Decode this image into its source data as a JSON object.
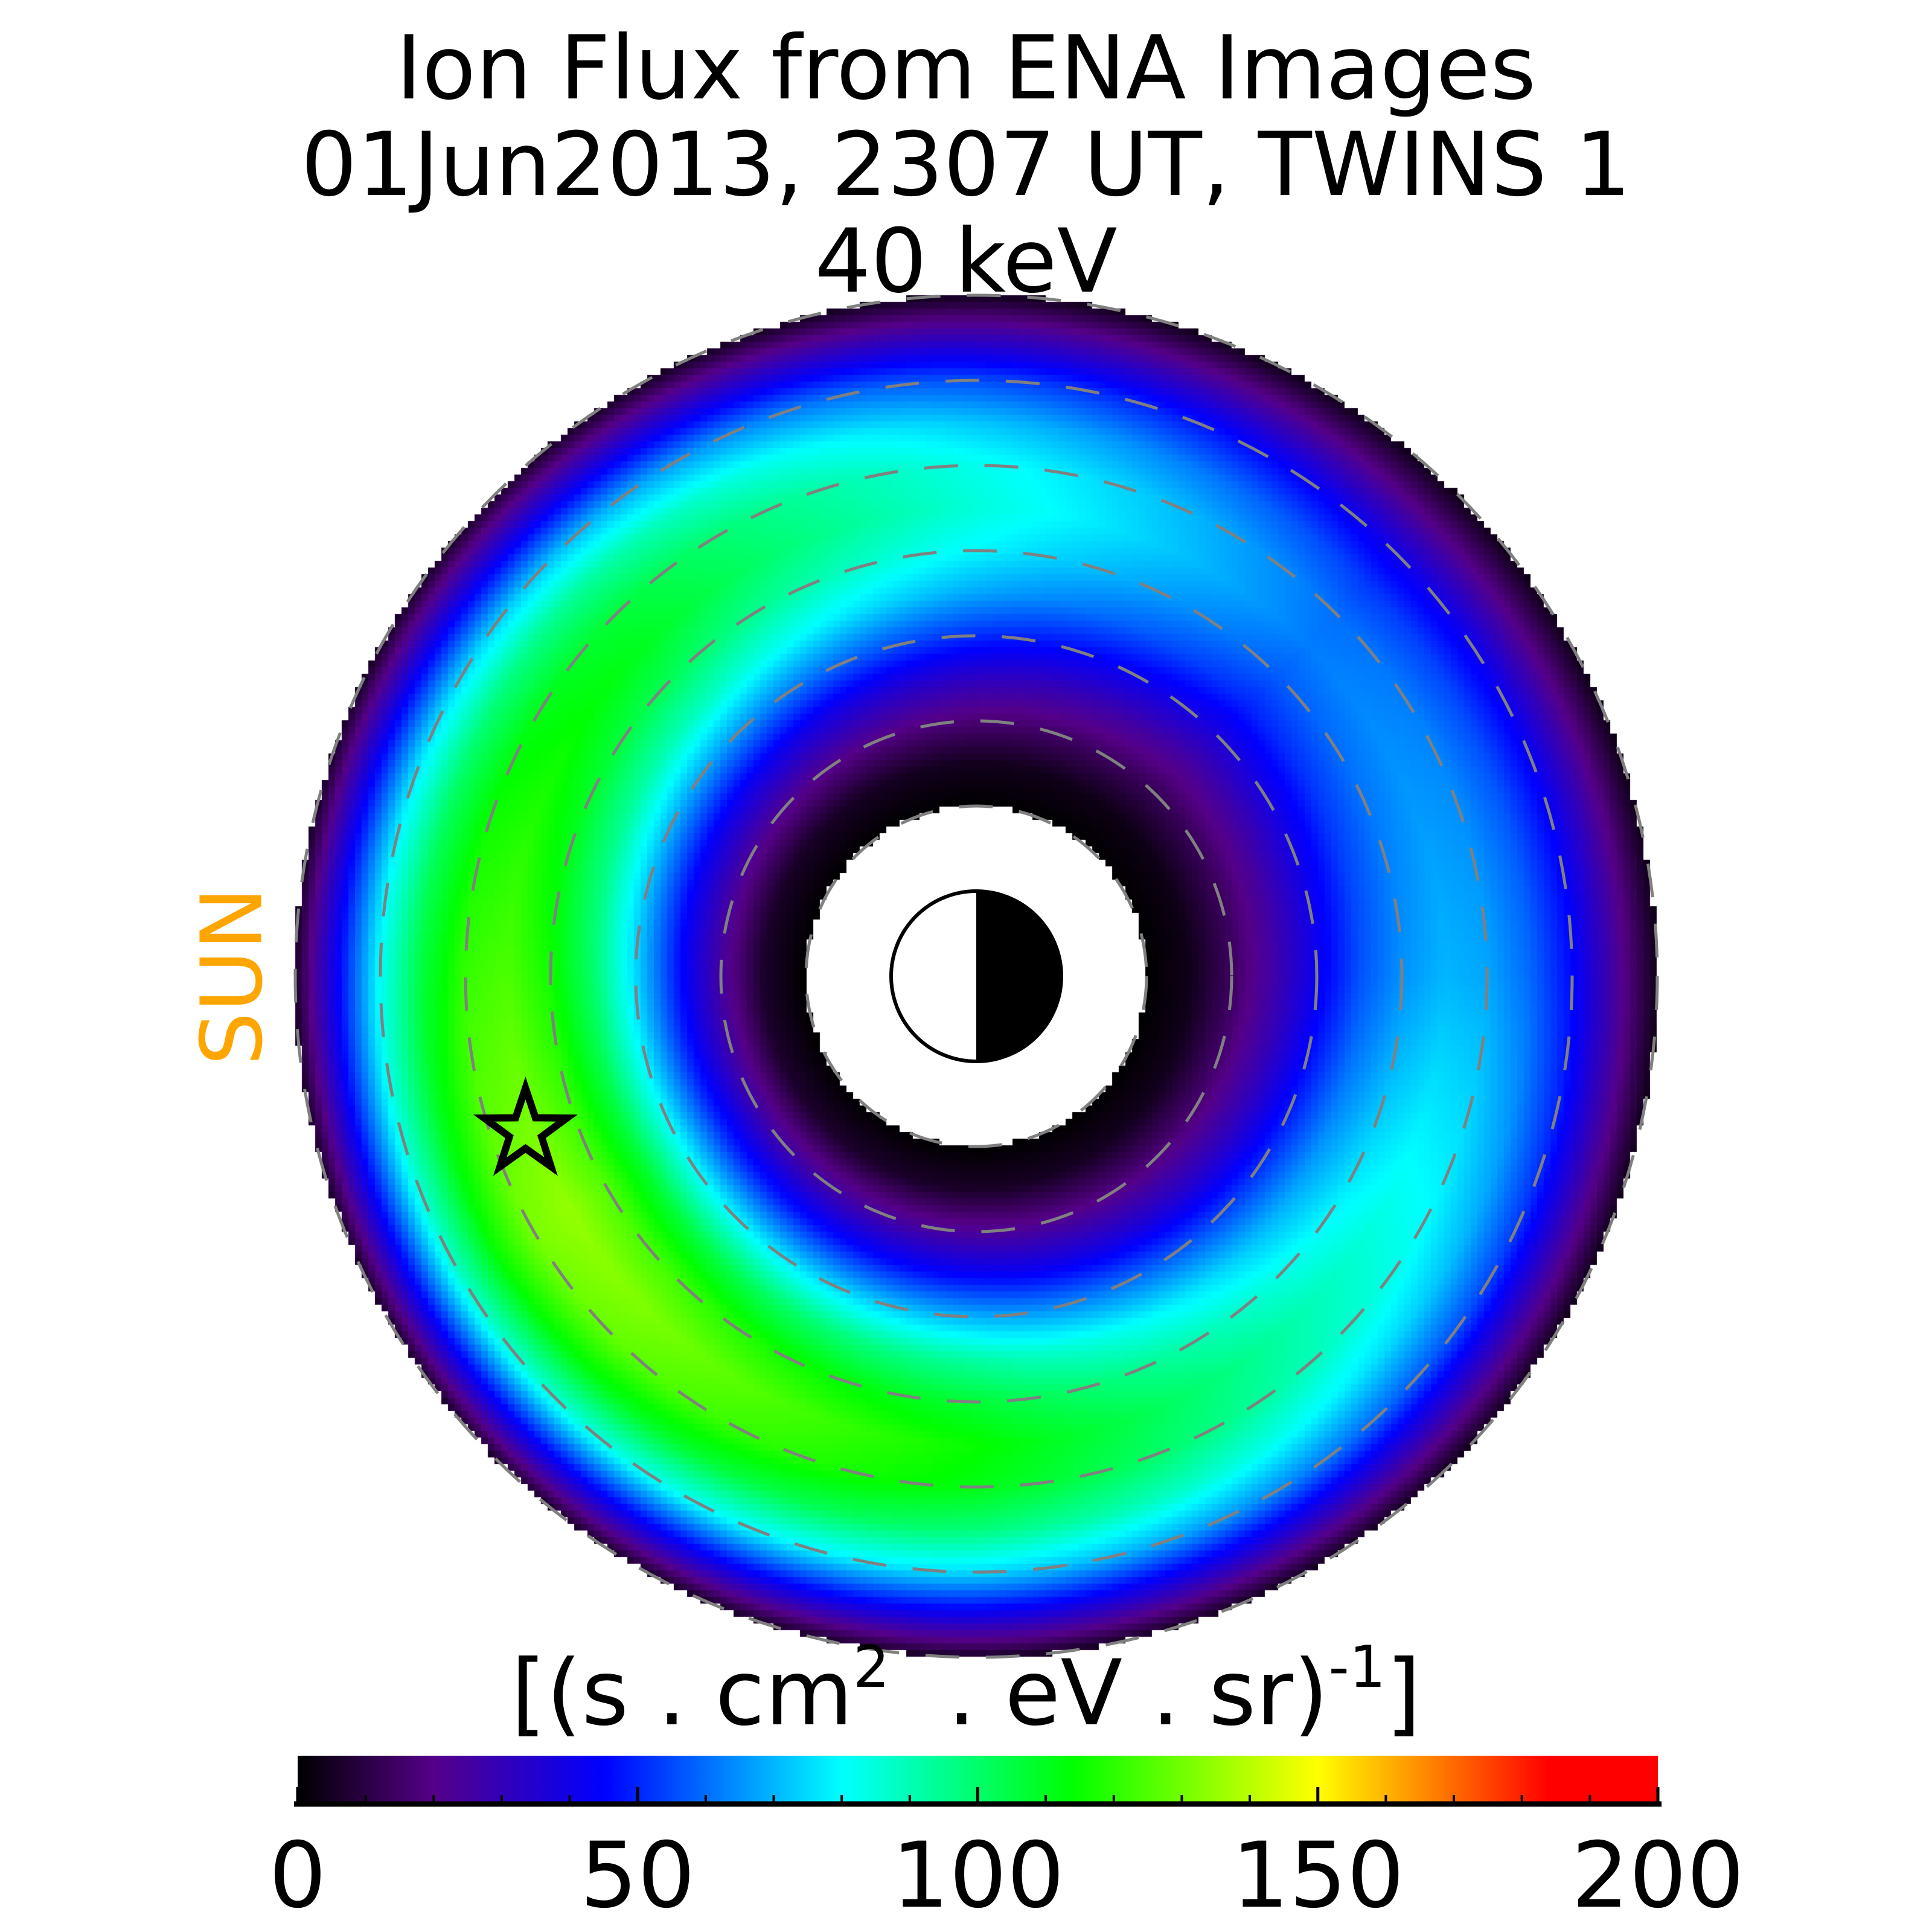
{
  "title": {
    "line1": "Ion Flux from  ENA Images",
    "line2": "01Jun2013, 2307 UT,  TWINS 1",
    "line3": "40 keV"
  },
  "sun_label": "SUN",
  "colors": {
    "sun_label": "#ffa500",
    "grid_circles": "#808080",
    "star_marker": "#000000"
  },
  "chart_data": {
    "type": "heatmap",
    "projection": "polar, equatorial plane, Sun to the left",
    "colorbar": {
      "label_parts": {
        "a": "[(s . cm",
        "b": "2",
        "c": "  . eV . sr)",
        "d": "-1",
        "e": "]"
      },
      "range": [
        0,
        200
      ],
      "major_ticks": [
        "0",
        "50",
        "100",
        "150",
        "200"
      ],
      "minor_tick_step": 10,
      "colormap_stops": [
        {
          "value": 0,
          "color": "#000000"
        },
        {
          "value": 20,
          "color": "#550088"
        },
        {
          "value": 45,
          "color": "#0000ff"
        },
        {
          "value": 80,
          "color": "#00ffff"
        },
        {
          "value": 114,
          "color": "#00ff00"
        },
        {
          "value": 150,
          "color": "#ffff00"
        },
        {
          "value": 184,
          "color": "#ff0000"
        },
        {
          "value": 200,
          "color": "#ff0000"
        }
      ]
    },
    "grid_circles_Re": [
      2,
      3,
      4,
      5,
      6,
      7,
      8
    ],
    "data_region_Re": [
      2,
      8
    ],
    "radial_profile": {
      "r_Re": [
        2.0,
        2.5,
        3.0,
        3.5,
        4.0,
        4.5,
        5.0,
        5.5,
        6.0,
        6.5,
        7.0,
        7.5,
        8.0
      ],
      "relative_flux": [
        0,
        0.05,
        0.2,
        0.38,
        0.6,
        0.8,
        0.93,
        1.0,
        0.97,
        0.85,
        0.65,
        0.35,
        0.05
      ]
    },
    "azimuthal_peak_flux": {
      "azimuth_deg_ccw_from_right": [
        0,
        45,
        90,
        135,
        180,
        210,
        225,
        270,
        315,
        360
      ],
      "peak_flux": [
        70,
        62,
        85,
        110,
        125,
        135,
        132,
        115,
        90,
        70
      ]
    },
    "star_marker": {
      "r_Re": 5.6,
      "azimuth_deg_ccw_from_right": 199
    }
  }
}
